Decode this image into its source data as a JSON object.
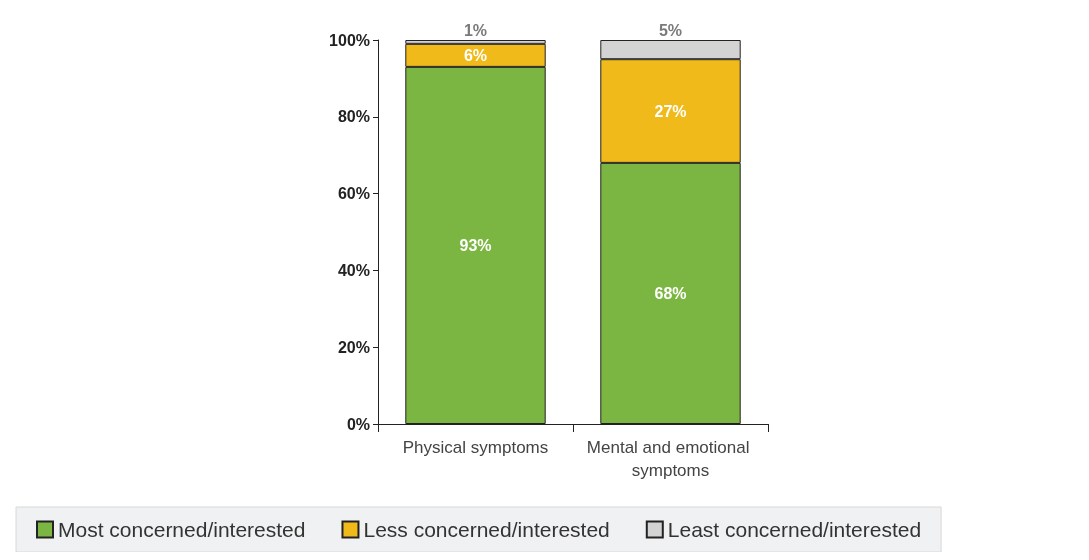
{
  "chart_data": {
    "type": "bar",
    "stacked": true,
    "categories": [
      "Physical symptoms",
      "Mental and emotional symptoms"
    ],
    "series": [
      {
        "name": "Most concerned/interested",
        "color": "#7cb642",
        "values": [
          93,
          68
        ],
        "value_labels": [
          "93%",
          "68%"
        ]
      },
      {
        "name": "Less concerned/interested",
        "color": "#efba1a",
        "values": [
          6,
          27
        ],
        "value_labels": [
          "6%",
          "27%"
        ]
      },
      {
        "name": "Least concerned/interested",
        "color": "#d3d3d3",
        "values": [
          1,
          5
        ],
        "value_labels": [
          "1%",
          "5%"
        ]
      }
    ],
    "ylim": [
      0,
      100
    ],
    "yticks": [
      {
        "value": 0,
        "label": "0%"
      },
      {
        "value": 20,
        "label": "20%"
      },
      {
        "value": 40,
        "label": "40%"
      },
      {
        "value": 60,
        "label": "60%"
      },
      {
        "value": 80,
        "label": "80%"
      },
      {
        "value": 100,
        "label": "100%"
      }
    ],
    "grid": false,
    "legend": "bottom"
  }
}
